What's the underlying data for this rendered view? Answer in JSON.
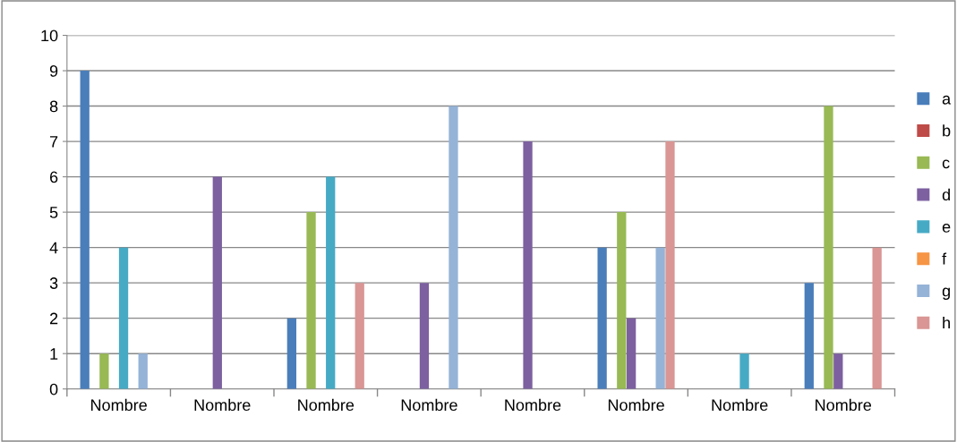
{
  "chart_data": {
    "type": "bar",
    "categories": [
      "Nombre",
      "Nombre",
      "Nombre",
      "Nombre",
      "Nombre",
      "Nombre",
      "Nombre",
      "Nombre"
    ],
    "series": [
      {
        "name": "a",
        "color": "#4a7ebb",
        "values": [
          9,
          null,
          2,
          null,
          null,
          4,
          null,
          3
        ]
      },
      {
        "name": "b",
        "color": "#be4b48",
        "values": [
          null,
          null,
          null,
          null,
          null,
          null,
          null,
          null
        ]
      },
      {
        "name": "c",
        "color": "#98b954",
        "values": [
          1,
          null,
          5,
          null,
          null,
          5,
          null,
          8
        ]
      },
      {
        "name": "d",
        "color": "#7d60a0",
        "values": [
          null,
          6,
          null,
          3,
          7,
          2,
          null,
          1
        ]
      },
      {
        "name": "e",
        "color": "#46aac5",
        "values": [
          4,
          null,
          6,
          null,
          null,
          null,
          1,
          null
        ]
      },
      {
        "name": "f",
        "color": "#f69545",
        "values": [
          null,
          null,
          null,
          null,
          null,
          null,
          null,
          null
        ]
      },
      {
        "name": "g",
        "color": "#95b3d7",
        "values": [
          1,
          null,
          null,
          8,
          null,
          4,
          null,
          null
        ]
      },
      {
        "name": "h",
        "color": "#d99694",
        "values": [
          null,
          null,
          3,
          null,
          null,
          7,
          null,
          4
        ]
      }
    ],
    "ylim": [
      0,
      10
    ],
    "yticks": [
      0,
      1,
      2,
      3,
      4,
      5,
      6,
      7,
      8,
      9,
      10
    ],
    "grid": "y",
    "legend": "right"
  }
}
